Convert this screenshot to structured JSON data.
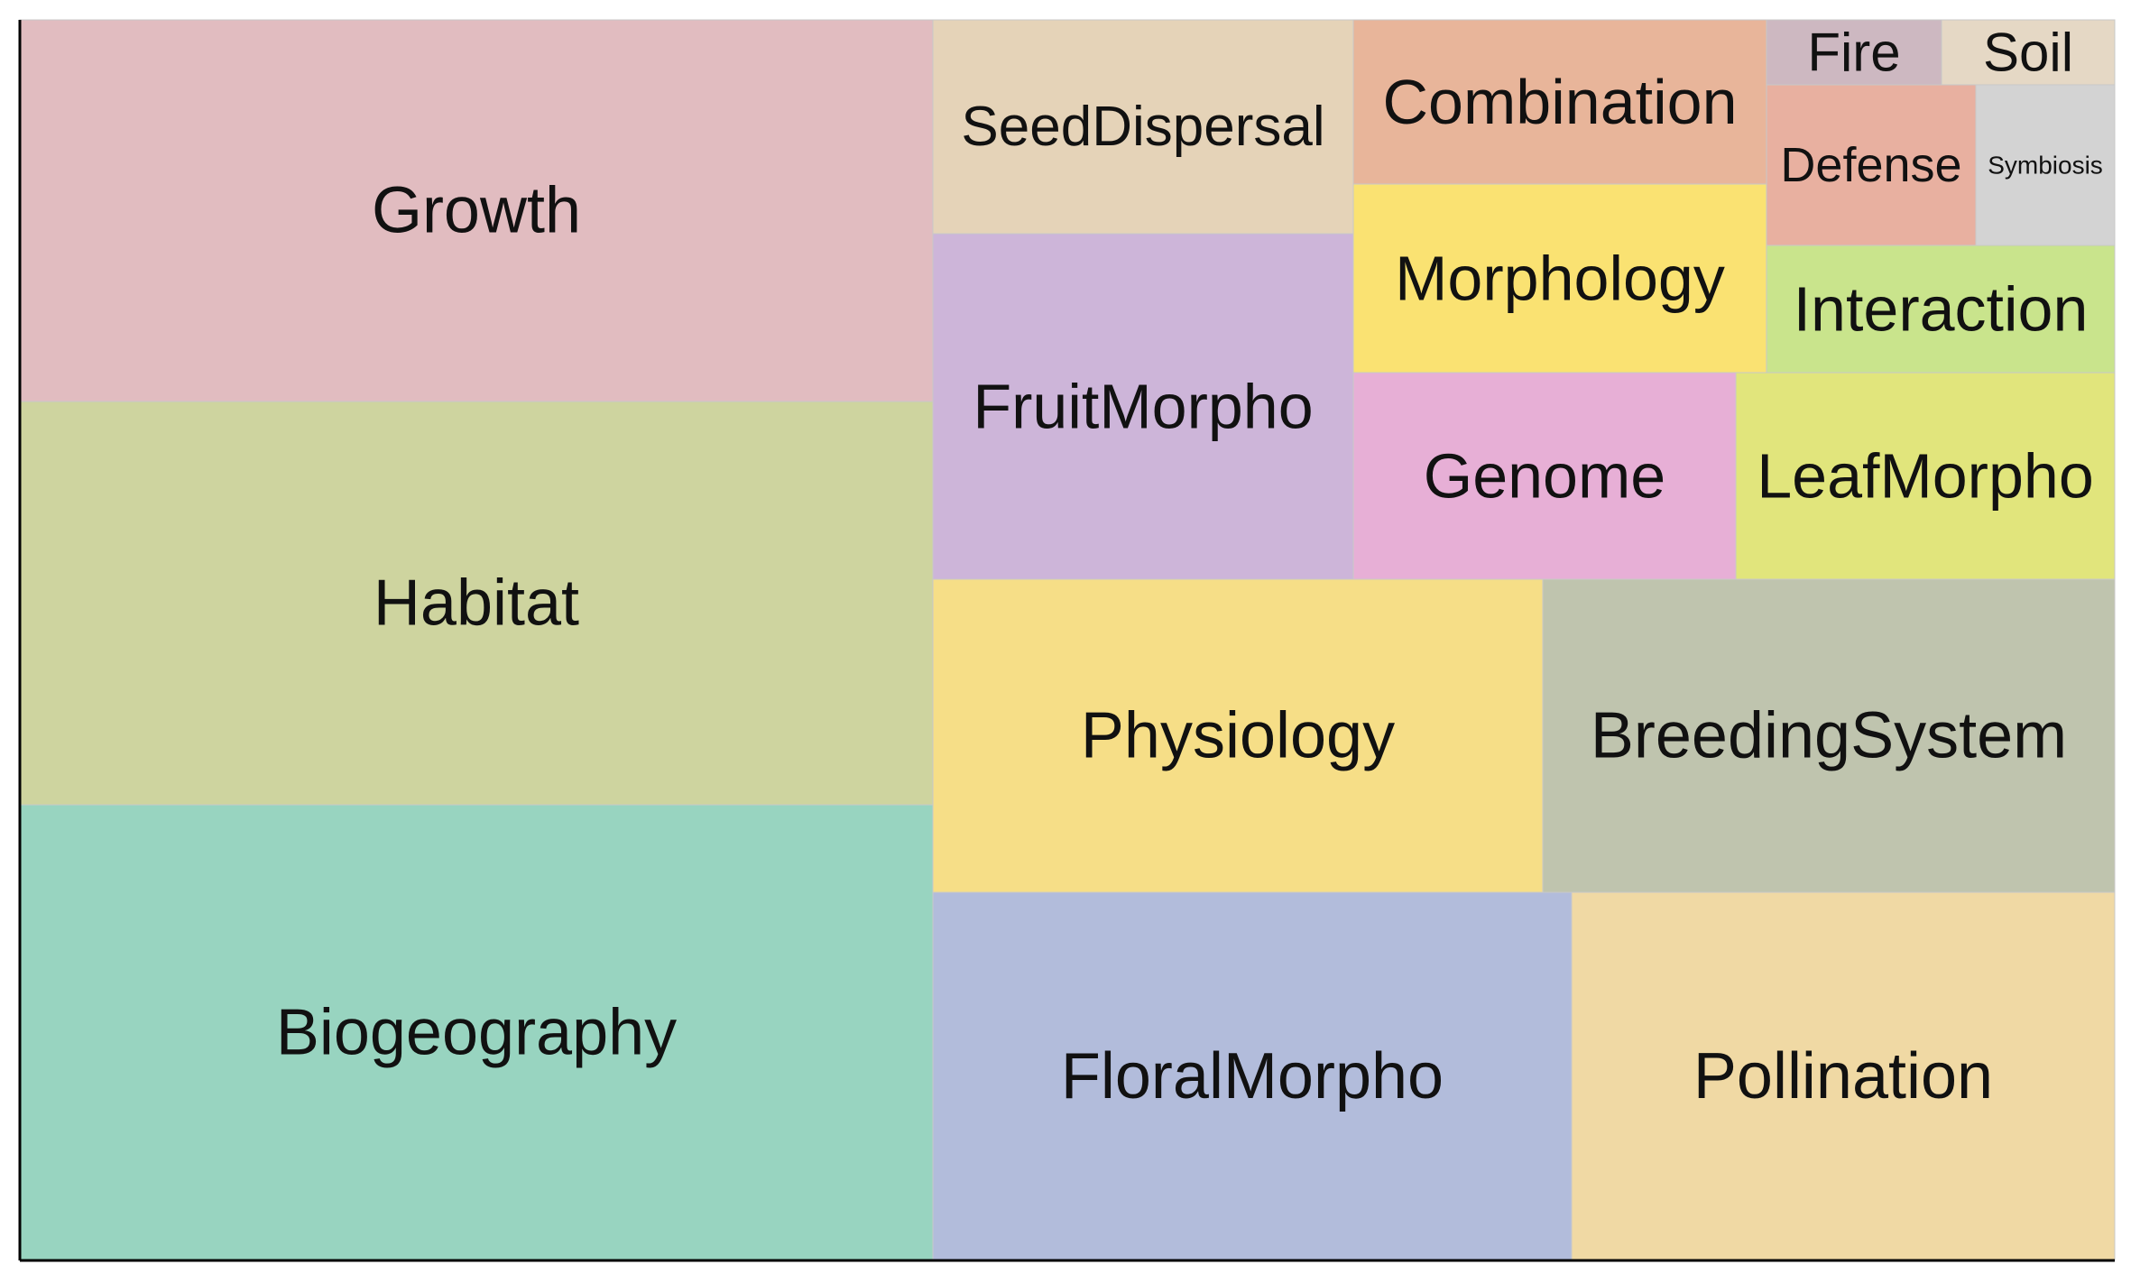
{
  "chart_data": {
    "type": "treemap",
    "title": "",
    "grid": false,
    "tiles": [
      {
        "label": "Growth",
        "color": "#e1bcc0"
      },
      {
        "label": "Habitat",
        "color": "#ced49f"
      },
      {
        "label": "Biogeography",
        "color": "#98d4c0"
      },
      {
        "label": "SeedDispersal",
        "color": "#e5d3b8"
      },
      {
        "label": "FruitMorpho",
        "color": "#cdb5d9"
      },
      {
        "label": "Combination",
        "color": "#e8b59a"
      },
      {
        "label": "Morphology",
        "color": "#fae272"
      },
      {
        "label": "Fire",
        "color": "#cdb8c1"
      },
      {
        "label": "Soil",
        "color": "#e5d8c5"
      },
      {
        "label": "Defense",
        "color": "#e8b0a0"
      },
      {
        "label": "Symbiosis",
        "color": "#d3d3d3"
      },
      {
        "label": "Interaction",
        "color": "#c9e48c"
      },
      {
        "label": "Genome",
        "color": "#e7afd6"
      },
      {
        "label": "LeafMorpho",
        "color": "#e1e57c"
      },
      {
        "label": "Physiology",
        "color": "#f6de87"
      },
      {
        "label": "BreedingSystem",
        "color": "#bfc4ae"
      },
      {
        "label": "FloralMorpho",
        "color": "#b2bcdb"
      },
      {
        "label": "Pollination",
        "color": "#f0d9a4"
      }
    ]
  }
}
